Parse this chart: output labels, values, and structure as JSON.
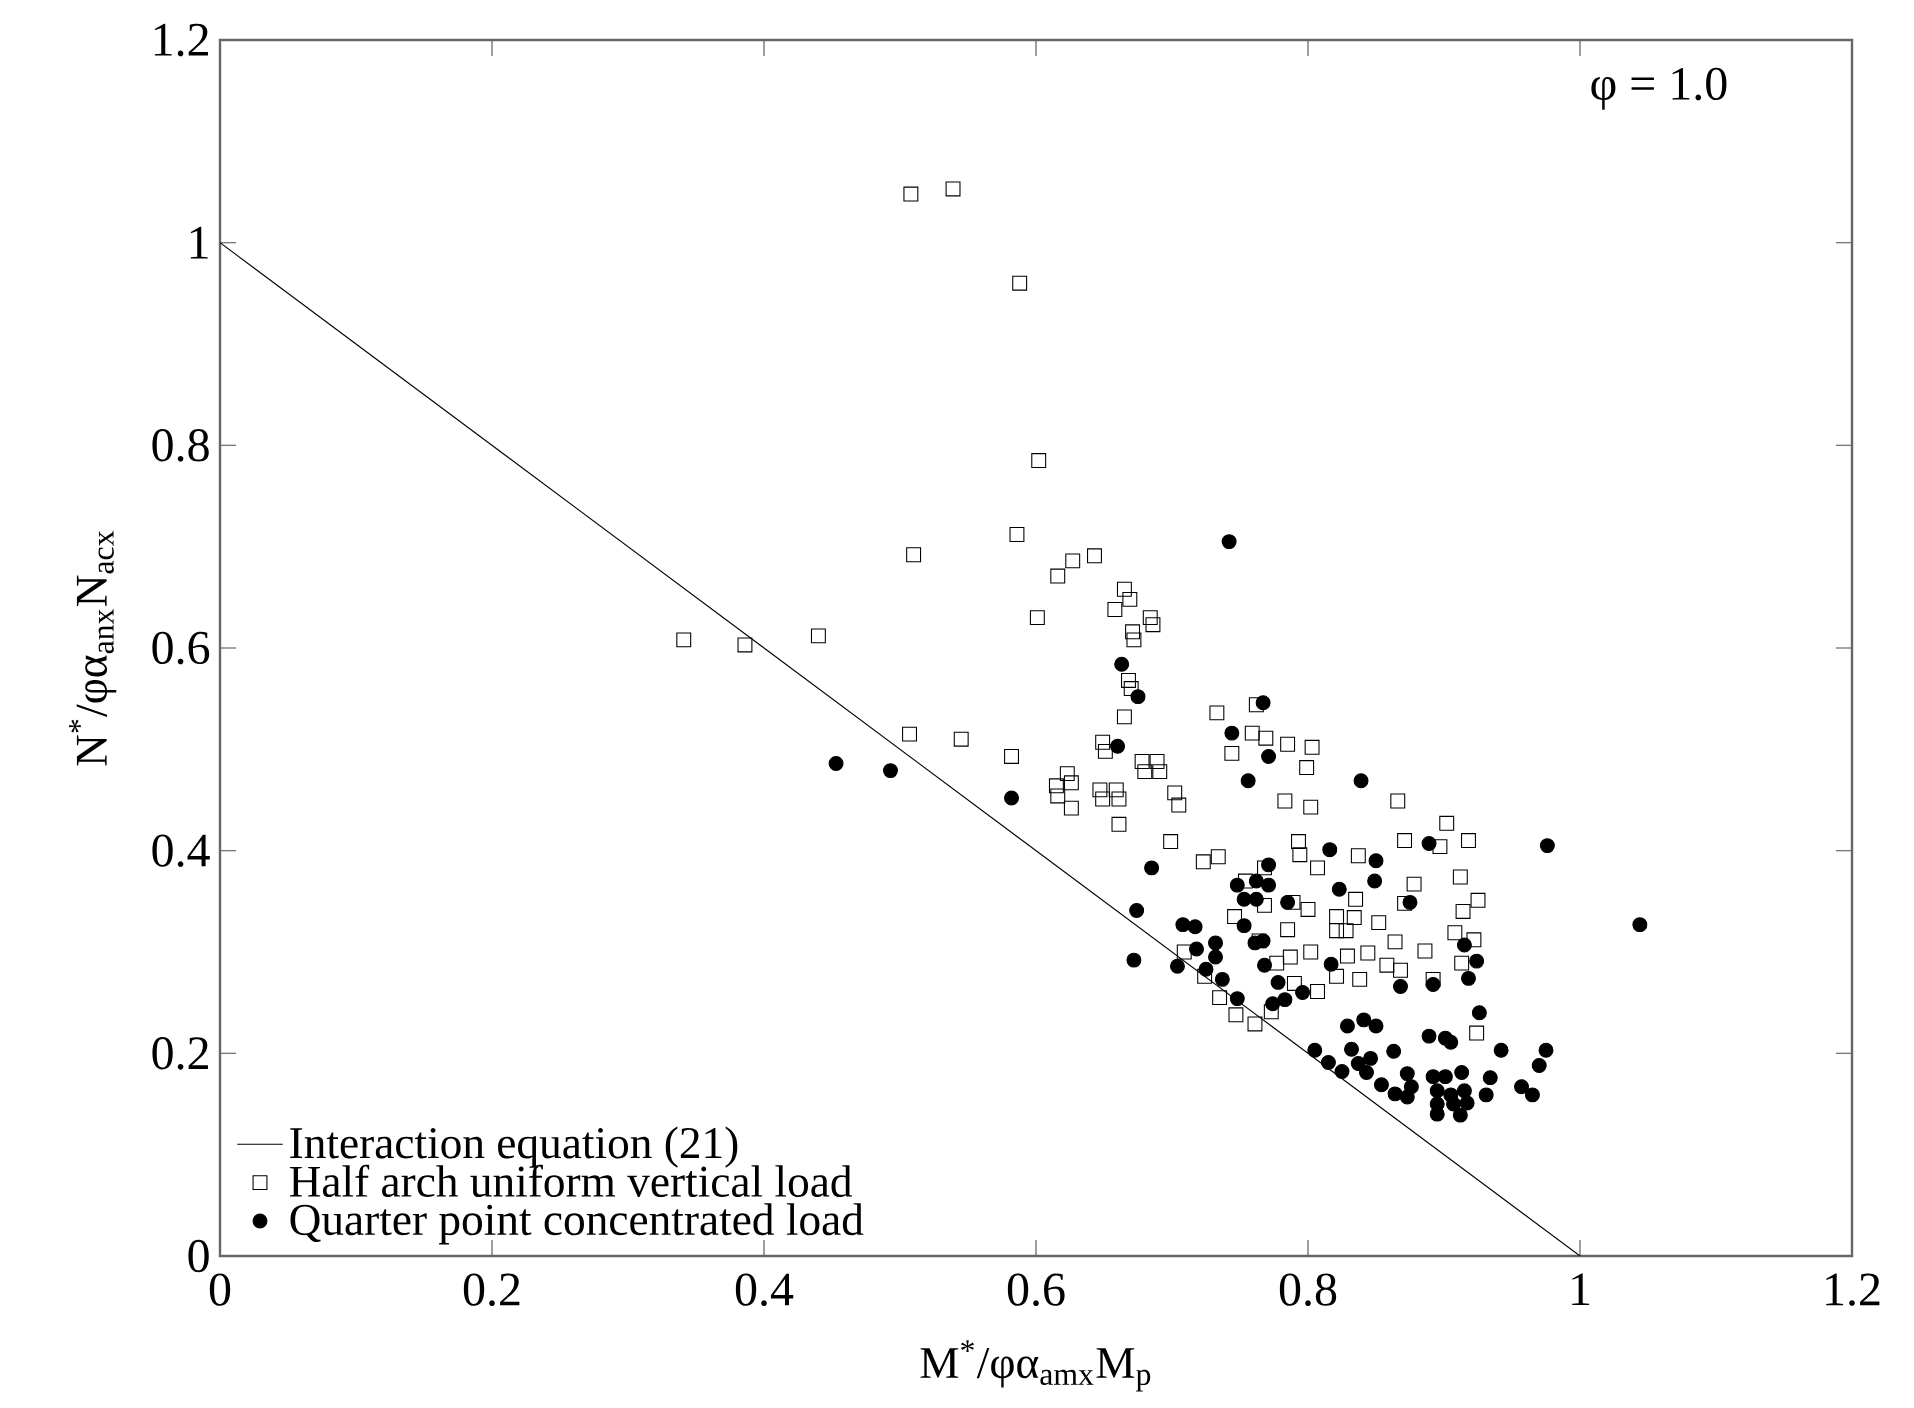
{
  "chart_data": {
    "type": "scatter",
    "xlabel": "M$^{*}$/φα$_{amx}$M$_{p}$",
    "ylabel": "N$^{*}$/φα$_{anx}$N$_{acx}$",
    "annotations": [
      "φ = 1.0"
    ],
    "xlim": [
      0,
      1.2
    ],
    "ylim": [
      0,
      1.2
    ],
    "xticks": [
      0,
      0.2,
      0.4,
      0.6,
      0.8,
      1,
      1.2
    ],
    "yticks": [
      0,
      0.2,
      0.4,
      0.6,
      0.8,
      1,
      1.2
    ],
    "grid": false,
    "legend": "bottom left",
    "series": [
      {
        "name": "Interaction equation (21)",
        "type": "line",
        "marker": "none",
        "line_style": "solid",
        "color": "#000000",
        "x": [
          0,
          1
        ],
        "values": [
          1,
          0
        ]
      },
      {
        "name": "Half arch uniform vertical load",
        "marker": "square",
        "color": "#000000",
        "x": [
          0.341,
          0.386,
          0.44,
          0.51,
          0.507,
          0.508,
          0.539,
          0.588,
          0.602,
          0.586,
          0.545,
          0.582,
          0.616,
          0.627,
          0.643,
          0.601,
          0.665,
          0.669,
          0.658,
          0.684,
          0.671,
          0.668,
          0.665,
          0.649,
          0.678,
          0.689,
          0.623,
          0.615,
          0.647,
          0.659,
          0.702,
          0.866,
          0.902,
          0.897,
          0.918,
          0.871,
          0.912,
          0.925,
          0.914,
          0.908,
          0.922,
          0.913,
          0.924,
          0.878,
          0.871,
          0.886,
          0.892,
          0.864,
          0.868,
          0.858,
          0.852,
          0.837,
          0.835,
          0.844,
          0.838,
          0.829,
          0.834,
          0.821,
          0.821,
          0.828,
          0.821,
          0.807,
          0.802,
          0.8,
          0.807,
          0.794,
          0.793,
          0.802,
          0.783,
          0.799,
          0.803,
          0.785,
          0.769,
          0.759,
          0.744,
          0.762,
          0.733,
          0.705,
          0.699,
          0.723,
          0.734,
          0.691,
          0.68,
          0.686,
          0.672,
          0.67,
          0.651,
          0.649,
          0.661,
          0.661,
          0.616,
          0.626,
          0.626,
          0.768,
          0.754,
          0.768,
          0.789,
          0.785,
          0.746,
          0.777,
          0.787,
          0.79,
          0.773,
          0.761,
          0.747,
          0.735,
          0.724,
          0.709,
          0.764
        ],
        "values": [
          0.608,
          0.603,
          0.612,
          0.692,
          0.515,
          1.048,
          1.053,
          0.96,
          0.785,
          0.712,
          0.51,
          0.493,
          0.671,
          0.686,
          0.691,
          0.63,
          0.658,
          0.648,
          0.638,
          0.63,
          0.616,
          0.568,
          0.532,
          0.507,
          0.488,
          0.488,
          0.476,
          0.464,
          0.46,
          0.46,
          0.457,
          0.449,
          0.427,
          0.404,
          0.41,
          0.41,
          0.374,
          0.351,
          0.34,
          0.319,
          0.312,
          0.289,
          0.22,
          0.367,
          0.348,
          0.301,
          0.273,
          0.31,
          0.282,
          0.287,
          0.329,
          0.395,
          0.352,
          0.299,
          0.273,
          0.296,
          0.334,
          0.335,
          0.321,
          0.321,
          0.276,
          0.261,
          0.3,
          0.342,
          0.383,
          0.396,
          0.409,
          0.443,
          0.449,
          0.482,
          0.502,
          0.505,
          0.511,
          0.516,
          0.496,
          0.544,
          0.536,
          0.445,
          0.409,
          0.389,
          0.394,
          0.478,
          0.478,
          0.623,
          0.608,
          0.56,
          0.498,
          0.451,
          0.451,
          0.426,
          0.454,
          0.467,
          0.442,
          0.383,
          0.37,
          0.346,
          0.349,
          0.322,
          0.335,
          0.289,
          0.295,
          0.269,
          0.241,
          0.229,
          0.238,
          0.255,
          0.276,
          0.3,
          0.311
        ]
      },
      {
        "name": "Quarter point concentrated load",
        "marker": "circle",
        "color": "#000000",
        "x": [
          0.453,
          0.493,
          0.582,
          0.742,
          0.663,
          0.675,
          0.66,
          0.685,
          0.674,
          0.672,
          0.704,
          0.708,
          0.717,
          0.718,
          0.732,
          0.732,
          0.725,
          0.737,
          0.748,
          0.744,
          0.767,
          0.771,
          0.756,
          0.839,
          0.889,
          0.976,
          1.044,
          0.816,
          0.85,
          0.849,
          0.823,
          0.875,
          0.748,
          0.771,
          0.762,
          0.753,
          0.762,
          0.771,
          0.785,
          0.753,
          0.761,
          0.767,
          0.768,
          0.778,
          0.774,
          0.783,
          0.796,
          0.817,
          0.868,
          0.892,
          0.915,
          0.924,
          0.918,
          0.926,
          0.829,
          0.841,
          0.85,
          0.889,
          0.901,
          0.905,
          0.805,
          0.815,
          0.825,
          0.832,
          0.837,
          0.846,
          0.843,
          0.863,
          0.854,
          0.864,
          0.873,
          0.876,
          0.873,
          0.892,
          0.901,
          0.913,
          0.895,
          0.905,
          0.915,
          0.895,
          0.907,
          0.917,
          0.895,
          0.912,
          0.931,
          0.934,
          0.942,
          0.957,
          0.965,
          0.97,
          0.975
        ],
        "values": [
          0.486,
          0.479,
          0.452,
          0.705,
          0.584,
          0.552,
          0.503,
          0.383,
          0.341,
          0.292,
          0.286,
          0.327,
          0.325,
          0.303,
          0.309,
          0.295,
          0.283,
          0.273,
          0.254,
          0.516,
          0.546,
          0.493,
          0.469,
          0.469,
          0.407,
          0.405,
          0.327,
          0.401,
          0.39,
          0.37,
          0.362,
          0.349,
          0.366,
          0.366,
          0.37,
          0.352,
          0.352,
          0.386,
          0.349,
          0.326,
          0.309,
          0.311,
          0.287,
          0.27,
          0.249,
          0.253,
          0.26,
          0.288,
          0.266,
          0.268,
          0.307,
          0.291,
          0.274,
          0.24,
          0.227,
          0.233,
          0.227,
          0.217,
          0.215,
          0.211,
          0.203,
          0.191,
          0.182,
          0.204,
          0.19,
          0.195,
          0.181,
          0.202,
          0.169,
          0.16,
          0.18,
          0.167,
          0.157,
          0.177,
          0.177,
          0.181,
          0.163,
          0.159,
          0.163,
          0.15,
          0.15,
          0.151,
          0.14,
          0.139,
          0.159,
          0.176,
          0.203,
          0.167,
          0.159,
          0.188,
          0.203
        ]
      }
    ]
  }
}
